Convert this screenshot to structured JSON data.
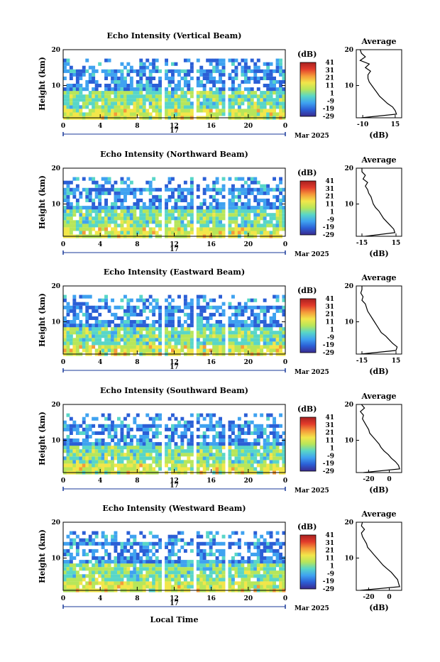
{
  "chart_data": {
    "type": "heatmap",
    "colorbar": {
      "label": "(dB)",
      "ticks": [
        41,
        31,
        21,
        11,
        1,
        -9,
        -19,
        -29
      ],
      "range": [
        -29,
        41
      ],
      "colors": [
        "#3a2a8e",
        "#2b5fd6",
        "#3fa2f0",
        "#58d6c8",
        "#b7e65a",
        "#f2e64a",
        "#f59a3a",
        "#e23b2b",
        "#a82020"
      ]
    },
    "x_axis": {
      "label": "Local Time",
      "ticks": [
        "0",
        "4",
        "8",
        "12",
        "16",
        "20",
        "0"
      ],
      "day_label": "17",
      "month_label": "Mar 2025",
      "range": [
        0,
        24
      ]
    },
    "y_axis": {
      "label": "Height (km)",
      "ticks": [
        "20",
        "10"
      ],
      "range": [
        1,
        20
      ]
    },
    "profile_title": "Average",
    "profile_xlabel": "(dB)",
    "gaps_hours": [
      [
        10.6,
        11.0
      ],
      [
        14.0,
        14.3
      ],
      [
        17.6,
        17.9
      ]
    ],
    "panels": [
      {
        "title": "Echo Intensity (Vertical Beam)",
        "profile_ticks": [
          "-10",
          "15"
        ],
        "profile_range": [
          -15,
          20
        ],
        "profile": {
          "height_km": [
            1,
            2,
            3,
            4,
            5,
            6,
            7,
            8,
            9,
            10,
            11,
            12,
            13,
            14,
            15,
            16,
            17,
            18,
            19,
            20
          ],
          "db": [
            -11,
            16,
            15,
            13,
            9,
            6,
            3,
            1,
            -1,
            -3,
            -5,
            -6,
            -6,
            -4,
            -8,
            -5,
            -12,
            -8,
            -11,
            -12
          ]
        }
      },
      {
        "title": "Echo Intensity (Northward Beam)",
        "profile_ticks": [
          "-15",
          "15"
        ],
        "profile_range": [
          -20,
          20
        ],
        "profile": {
          "height_km": [
            1,
            2,
            3,
            4,
            5,
            6,
            7,
            8,
            9,
            10,
            11,
            12,
            13,
            14,
            15,
            16,
            17,
            18,
            19,
            20
          ],
          "db": [
            -12,
            14,
            13,
            10,
            7,
            4,
            2,
            0,
            -3,
            -5,
            -6,
            -7,
            -9,
            -10,
            -12,
            -10,
            -14,
            -12,
            -15,
            -15
          ]
        }
      },
      {
        "title": "Echo Intensity (Eastward Beam)",
        "profile_ticks": [
          "-15",
          "15"
        ],
        "profile_range": [
          -20,
          20
        ],
        "profile": {
          "height_km": [
            1,
            2,
            3,
            4,
            5,
            6,
            7,
            8,
            9,
            10,
            11,
            12,
            13,
            14,
            15,
            16,
            17,
            18,
            19,
            20
          ],
          "db": [
            -16,
            15,
            16,
            12,
            9,
            6,
            2,
            0,
            -2,
            -4,
            -6,
            -8,
            -10,
            -11,
            -12,
            -15,
            -14,
            -16,
            -15,
            -15
          ]
        }
      },
      {
        "title": "Echo Intensity (Southward Beam)",
        "profile_ticks": [
          "-20",
          "0"
        ],
        "profile_range": [
          -32,
          12
        ],
        "profile": {
          "height_km": [
            1,
            2,
            3,
            4,
            5,
            6,
            7,
            8,
            9,
            10,
            11,
            12,
            13,
            14,
            15,
            16,
            17,
            18,
            19,
            20
          ],
          "db": [
            -25,
            10,
            9,
            6,
            2,
            -1,
            -5,
            -8,
            -10,
            -13,
            -16,
            -19,
            -20,
            -22,
            -24,
            -26,
            -25,
            -28,
            -24,
            -27
          ]
        }
      },
      {
        "title": "Echo Intensity (Westward Beam)",
        "profile_ticks": [
          "-20",
          "0"
        ],
        "profile_range": [
          -32,
          12
        ],
        "profile": {
          "height_km": [
            1,
            2,
            3,
            4,
            5,
            6,
            7,
            8,
            9,
            10,
            11,
            12,
            13,
            14,
            15,
            16,
            17,
            18,
            19,
            20
          ],
          "db": [
            -28,
            10,
            9,
            8,
            5,
            2,
            -2,
            -6,
            -9,
            -12,
            -15,
            -18,
            -21,
            -22,
            -24,
            -26,
            -27,
            -24,
            -27,
            -26
          ]
        }
      }
    ]
  }
}
